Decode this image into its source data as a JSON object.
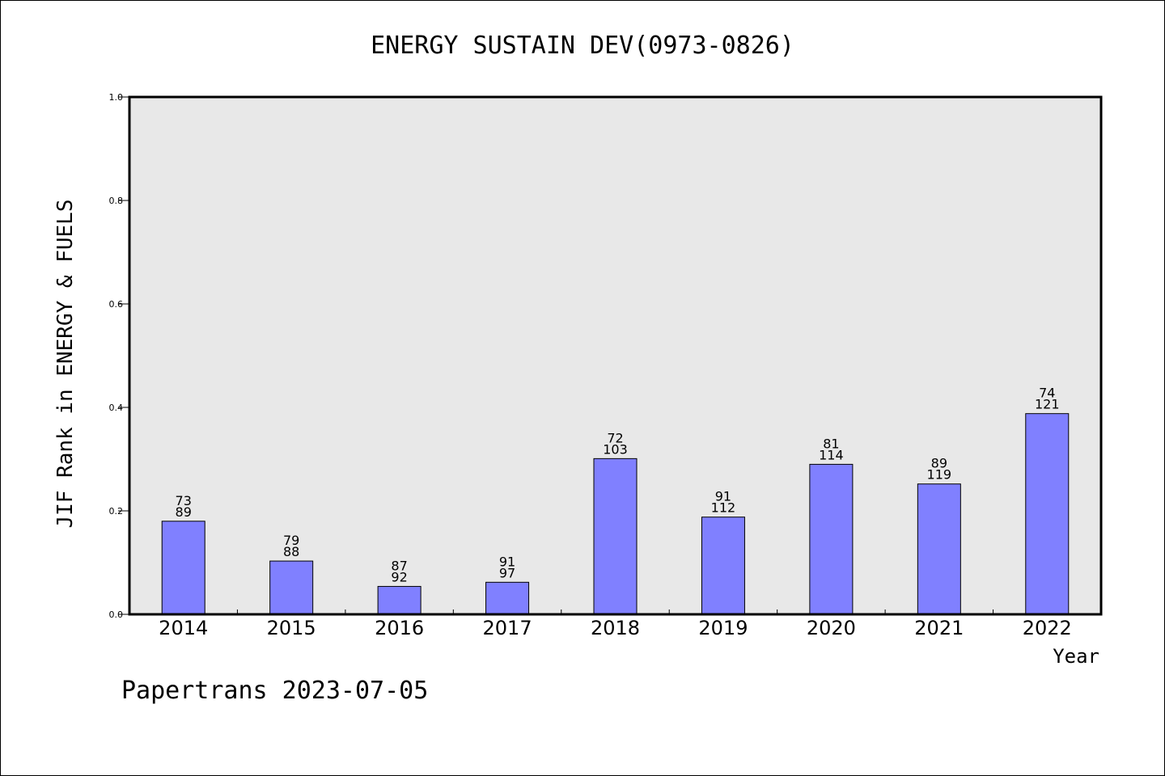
{
  "chart_data": {
    "type": "bar",
    "title": "ENERGY SUSTAIN DEV(0973-0826)",
    "xlabel": "Year",
    "ylabel": "JIF Rank in ENERGY & FUELS",
    "ylim": [
      0,
      1.0
    ],
    "yticks": [
      "0.0",
      "0.2",
      "0.4",
      "0.6",
      "0.8",
      "1.0"
    ],
    "categories": [
      "2014",
      "2015",
      "2016",
      "2017",
      "2018",
      "2019",
      "2020",
      "2021",
      "2022"
    ],
    "values": [
      0.18,
      0.103,
      0.054,
      0.062,
      0.301,
      0.188,
      0.29,
      0.252,
      0.388
    ],
    "rank_labels": [
      "73",
      "79",
      "87",
      "91",
      "72",
      "91",
      "81",
      "89",
      "74"
    ],
    "total_labels": [
      "89",
      "88",
      "92",
      "97",
      "103",
      "112",
      "114",
      "119",
      "121"
    ],
    "bar_color": "#8080ff",
    "plot_background": "#e8e8e8",
    "grid": false,
    "legend": "none"
  },
  "footer": "Papertrans 2023-07-05"
}
